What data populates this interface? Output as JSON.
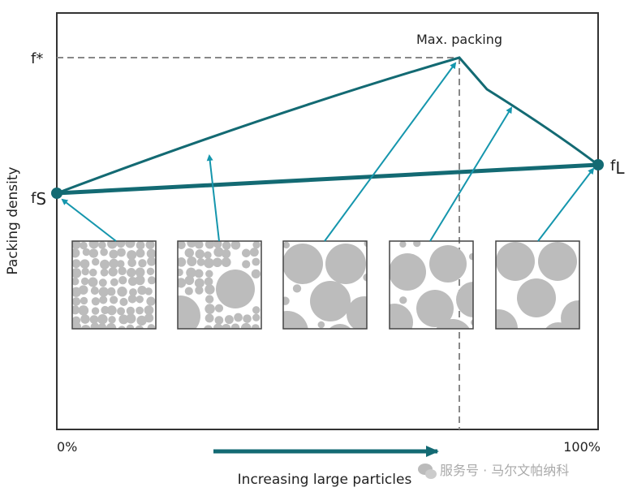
{
  "labels": {
    "y_axis": "Packing density",
    "x_axis": "Increasing large particles",
    "x_start": "0%",
    "x_end": "100%",
    "f_star": "f*",
    "f_s_base": "f",
    "f_s_sub": "S",
    "f_l_base": "f",
    "f_l_sub": "L",
    "max_packing": "Max. packing"
  },
  "watermark": "服务号 · 马尔文帕纳科",
  "colors": {
    "curve": "#136a73",
    "arrow": "#1596ad",
    "particle": "#bcbcbc",
    "dashed": "#888888"
  }
}
